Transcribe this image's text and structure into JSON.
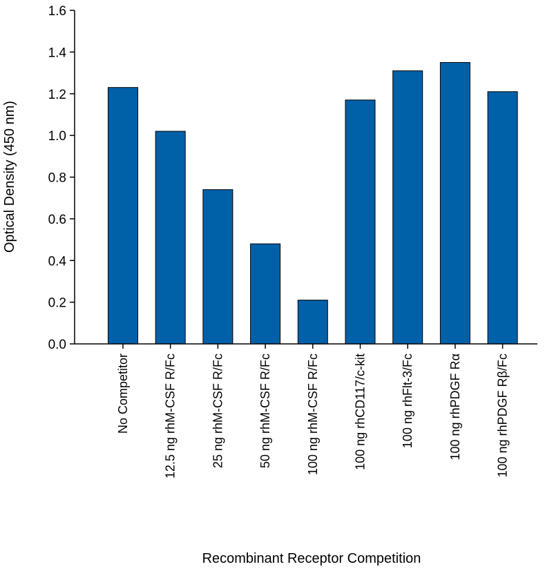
{
  "chart_data": {
    "type": "bar",
    "title": "",
    "xlabel": "Recombinant Receptor Competition",
    "ylabel": "Optical Density (450 nm)",
    "ylim": [
      0,
      1.6
    ],
    "yticks": [
      "0.0",
      "0.2",
      "0.4",
      "0.6",
      "0.8",
      "1.0",
      "1.2",
      "1.4",
      "1.6"
    ],
    "categories": [
      "No Competitor",
      "12.5 ng rhM-CSF R/Fc",
      "25 ng rhM-CSF R/Fc",
      "50 ng rhM-CSF R/Fc",
      "100 ng rhM-CSF R/Fc",
      "100 ng rhCD117/c-kit",
      "100 ng rhFlt-3/Fc",
      "100 ng rhPDGF Rα",
      "100 ng rhPDGF Rβ/Fc"
    ],
    "values": [
      1.23,
      1.02,
      0.74,
      0.48,
      0.21,
      1.17,
      1.31,
      1.35,
      1.21
    ],
    "bar_color": "#0060a8",
    "grid": false,
    "legend": "none"
  }
}
